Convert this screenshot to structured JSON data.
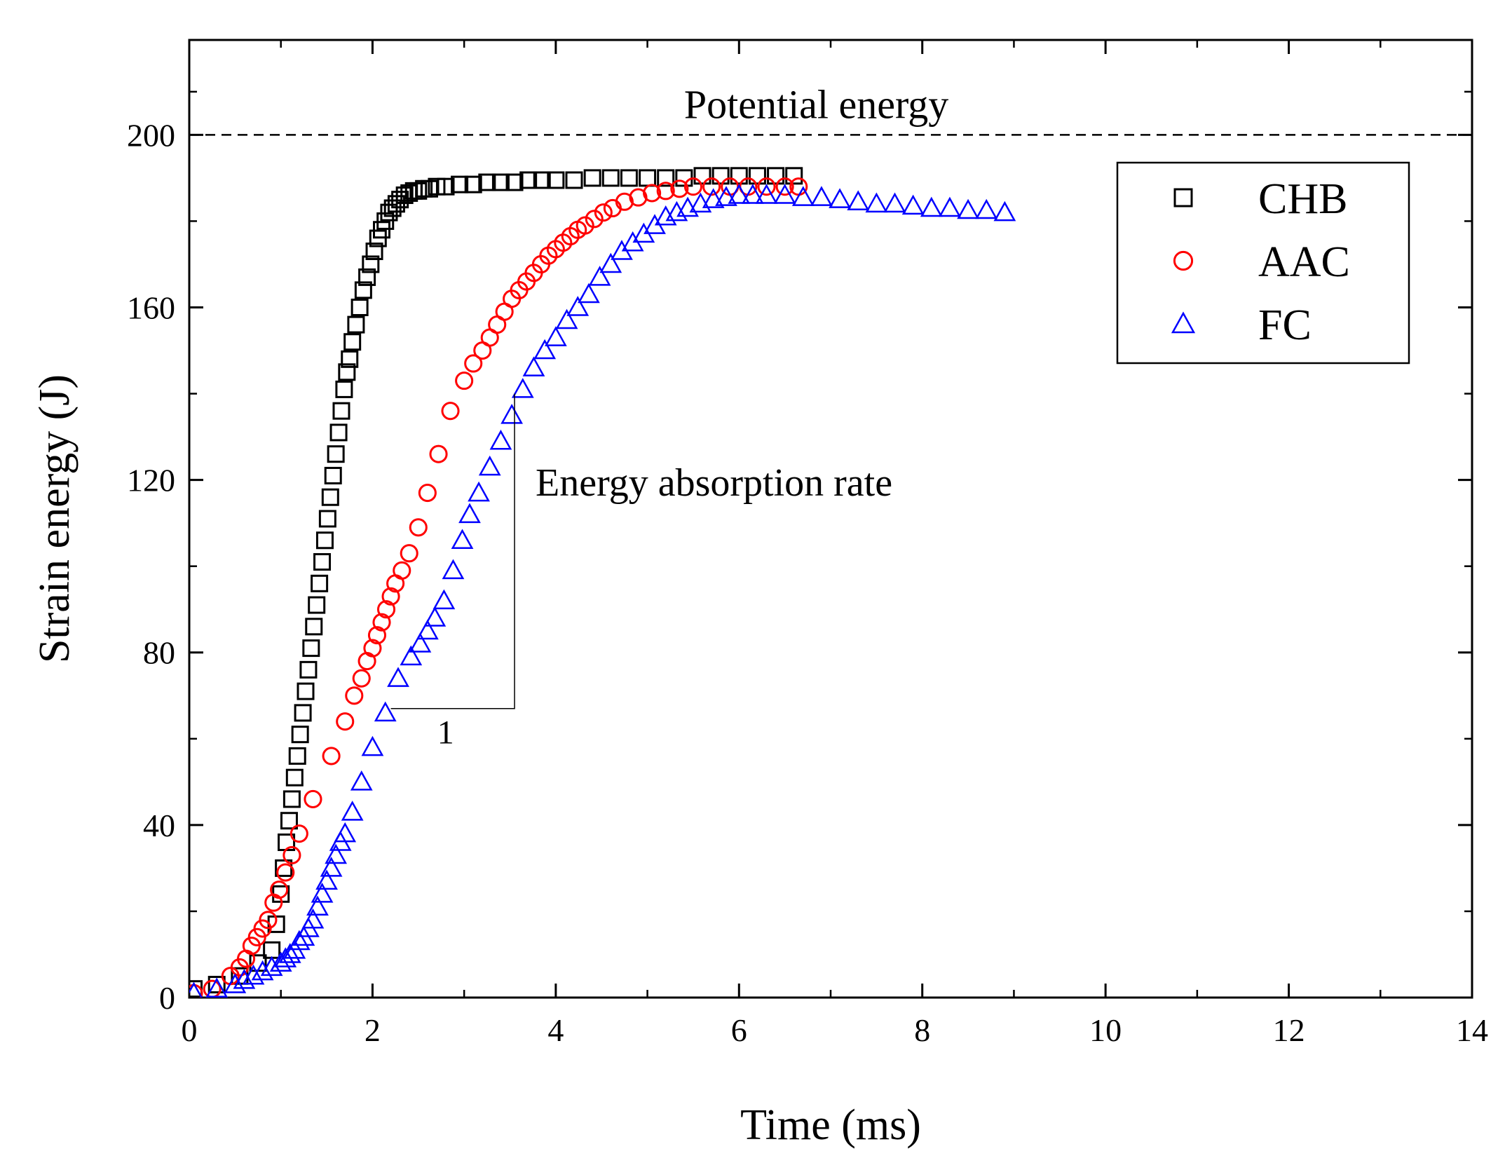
{
  "chart_data": {
    "type": "scatter",
    "title": "",
    "xlabel": "Time (ms)",
    "ylabel": "Strain energy (J)",
    "xlim": [
      0,
      14
    ],
    "ylim": [
      0,
      222
    ],
    "x_ticks": [
      0,
      2,
      4,
      6,
      8,
      10,
      12,
      14
    ],
    "y_ticks": [
      0,
      40,
      80,
      120,
      160,
      200
    ],
    "x_tick_labels": [
      "0",
      "2",
      "4",
      "6",
      "8",
      "10",
      "12",
      "14"
    ],
    "y_tick_labels": [
      "0",
      "40",
      "80",
      "120",
      "160",
      "200"
    ],
    "grid": false,
    "legend_position": "top-right",
    "reference_line": {
      "label": "Potential energy",
      "y": 200,
      "style": "dashed",
      "color": "#000000"
    },
    "annotations": [
      {
        "kind": "slope-triangle",
        "text": "Energy absorption rate",
        "run_label": "1",
        "x_start": 2.2,
        "x_end": 3.55,
        "y_start": 67,
        "y_end": 140
      }
    ],
    "series": [
      {
        "name": "CHB",
        "marker": "square",
        "color": "#000000",
        "x": [
          0.05,
          0.3,
          0.55,
          0.75,
          0.9,
          0.95,
          1.0,
          1.03,
          1.06,
          1.09,
          1.12,
          1.15,
          1.18,
          1.21,
          1.24,
          1.27,
          1.3,
          1.33,
          1.36,
          1.39,
          1.42,
          1.45,
          1.48,
          1.51,
          1.54,
          1.57,
          1.6,
          1.63,
          1.66,
          1.69,
          1.72,
          1.75,
          1.78,
          1.82,
          1.86,
          1.9,
          1.94,
          1.98,
          2.02,
          2.06,
          2.1,
          2.14,
          2.18,
          2.22,
          2.26,
          2.3,
          2.35,
          2.4,
          2.45,
          2.5,
          2.56,
          2.62,
          2.7,
          2.8,
          2.95,
          3.1,
          3.25,
          3.4,
          3.55,
          3.7,
          3.85,
          4.0,
          4.2,
          4.4,
          4.6,
          4.8,
          5.0,
          5.2,
          5.4,
          5.6,
          5.8,
          6.0,
          6.2,
          6.4,
          6.6
        ],
        "y": [
          2,
          3,
          5,
          8,
          11,
          17,
          24,
          30,
          36,
          41,
          46,
          51,
          56,
          61,
          66,
          71,
          76,
          81,
          86,
          91,
          96,
          101,
          106,
          111,
          116,
          121,
          126,
          131,
          136,
          141,
          145,
          148,
          152,
          156,
          160,
          164,
          167,
          170,
          173,
          176,
          178,
          180,
          182,
          183,
          184,
          185,
          186,
          186.5,
          187,
          187,
          187.5,
          187.5,
          188,
          188,
          188.5,
          188.5,
          189,
          189,
          189,
          189.5,
          189.5,
          189.5,
          189.5,
          190,
          190,
          190,
          190,
          190,
          190,
          190.5,
          190.5,
          190.5,
          190.5,
          190.5,
          190.5
        ]
      },
      {
        "name": "AAC",
        "marker": "circle",
        "color": "#ff0000",
        "x": [
          0.05,
          0.25,
          0.45,
          0.55,
          0.62,
          0.68,
          0.74,
          0.8,
          0.86,
          0.92,
          0.98,
          1.05,
          1.12,
          1.2,
          1.35,
          1.55,
          1.7,
          1.8,
          1.88,
          1.94,
          2.0,
          2.05,
          2.1,
          2.15,
          2.2,
          2.25,
          2.32,
          2.4,
          2.5,
          2.6,
          2.72,
          2.85,
          3.0,
          3.1,
          3.2,
          3.28,
          3.36,
          3.44,
          3.52,
          3.6,
          3.68,
          3.76,
          3.84,
          3.92,
          4.0,
          4.08,
          4.16,
          4.24,
          4.32,
          4.42,
          4.52,
          4.62,
          4.75,
          4.9,
          5.05,
          5.2,
          5.35,
          5.5,
          5.7,
          5.9,
          6.1,
          6.3,
          6.5,
          6.65
        ],
        "y": [
          1,
          2,
          5,
          7,
          9,
          12,
          14,
          16,
          18,
          22,
          25,
          29,
          33,
          38,
          46,
          56,
          64,
          70,
          74,
          78,
          81,
          84,
          87,
          90,
          93,
          96,
          99,
          103,
          109,
          117,
          126,
          136,
          143,
          147,
          150,
          153,
          156,
          159,
          162,
          164,
          166,
          168,
          170,
          172,
          173.5,
          175,
          176.5,
          178,
          179,
          180.5,
          182,
          183,
          184.5,
          185.5,
          186.5,
          187,
          187.5,
          188,
          188,
          188,
          188,
          188,
          188,
          188
        ]
      },
      {
        "name": "FC",
        "marker": "triangle",
        "color": "#0000ff",
        "x": [
          0.05,
          0.3,
          0.5,
          0.6,
          0.7,
          0.8,
          0.9,
          1.0,
          1.05,
          1.1,
          1.15,
          1.2,
          1.25,
          1.3,
          1.35,
          1.4,
          1.45,
          1.5,
          1.55,
          1.6,
          1.65,
          1.7,
          1.78,
          1.88,
          2.0,
          2.14,
          2.28,
          2.42,
          2.52,
          2.6,
          2.68,
          2.78,
          2.88,
          2.98,
          3.06,
          3.16,
          3.28,
          3.4,
          3.52,
          3.64,
          3.76,
          3.88,
          4.0,
          4.12,
          4.24,
          4.36,
          4.48,
          4.6,
          4.72,
          4.84,
          4.96,
          5.08,
          5.2,
          5.32,
          5.44,
          5.58,
          5.72,
          5.86,
          6.0,
          6.15,
          6.3,
          6.5,
          6.7,
          6.9,
          7.1,
          7.3,
          7.5,
          7.7,
          7.9,
          8.1,
          8.3,
          8.5,
          8.7,
          8.9
        ],
        "y": [
          1,
          2,
          3,
          4,
          5,
          6,
          7,
          8,
          9,
          10,
          11,
          13,
          14,
          16,
          18,
          21,
          24,
          27,
          30,
          33,
          36,
          38,
          43,
          50,
          58,
          66,
          74,
          79,
          82,
          85,
          88,
          92,
          99,
          106,
          112,
          117,
          123,
          129,
          135,
          141,
          146,
          150,
          153,
          157,
          160,
          163,
          167,
          170,
          173,
          175,
          177,
          179,
          181,
          182,
          183,
          184,
          185,
          185.5,
          186,
          186,
          186,
          186,
          185.5,
          185.5,
          185,
          184.5,
          184,
          184,
          183.5,
          183,
          183,
          182.5,
          182.5,
          182
        ]
      }
    ]
  }
}
